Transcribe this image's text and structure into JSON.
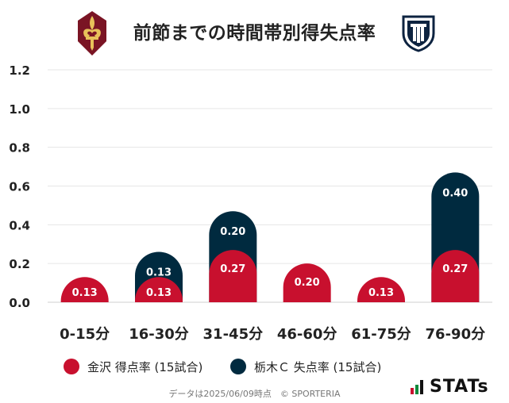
{
  "header": {
    "title": "前節までの時間帯別得失点率",
    "left_team_logo": "fleur-de-lis-crest-icon",
    "right_team_logo": "shield-crest-icon"
  },
  "legend": {
    "home_label": "金沢 得点率 (15試合)",
    "away_label": "栃木Ｃ 失点率 (15試合)"
  },
  "footer": {
    "note": "データは2025/06/09時点　© SPORTERIA"
  },
  "brand": {
    "name": "STATs"
  },
  "colors": {
    "home": "#c8102e",
    "away": "#002a3f",
    "grid": "#e6e6e6"
  },
  "chart_data": {
    "type": "bar",
    "stacked": true,
    "categories": [
      "0-15分",
      "16-30分",
      "31-45分",
      "46-60分",
      "61-75分",
      "76-90分"
    ],
    "series": [
      {
        "name": "金沢 得点率 (15試合)",
        "values": [
          0.13,
          0.13,
          0.27,
          0.2,
          0.13,
          0.27
        ]
      },
      {
        "name": "栃木Ｃ 失点率 (15試合)",
        "values": [
          0,
          0.13,
          0.2,
          0,
          0,
          0.4
        ]
      }
    ],
    "data_labels": [
      [
        "0.13",
        "0.13",
        "0.27",
        "0.20",
        "0.13",
        "0.27"
      ],
      [
        "",
        "0.13",
        "0.20",
        "",
        "",
        "0.40"
      ]
    ],
    "yticks": [
      "0.0",
      "0.2",
      "0.4",
      "0.6",
      "0.8",
      "1.0",
      "1.2"
    ],
    "ylim": [
      0,
      1.2
    ],
    "grid": true,
    "legend_position": "bottom"
  }
}
